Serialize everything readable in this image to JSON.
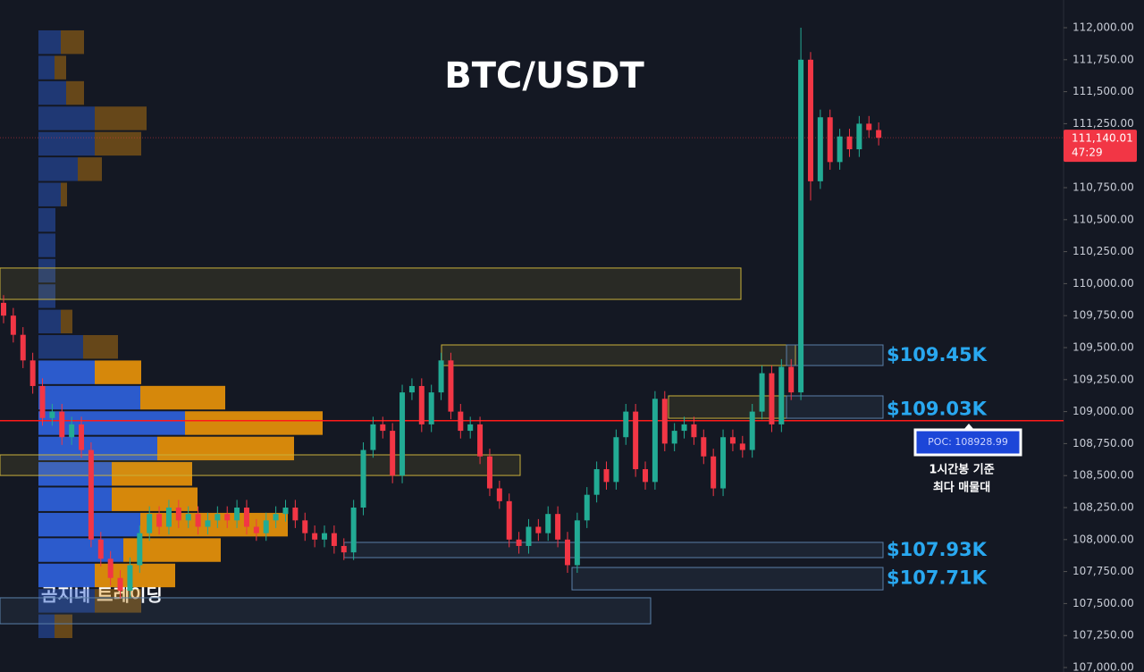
{
  "chart_data": {
    "type": "candlestick",
    "title": "BTC/USDT",
    "watermark": "곰지네 트레이딩",
    "categories": [
      null,
      null,
      null,
      null,
      null,
      null,
      null,
      null,
      null,
      null,
      null,
      null,
      null,
      null,
      null,
      null,
      null,
      null,
      null,
      null,
      null,
      null,
      null,
      null,
      null,
      null,
      null,
      null,
      null,
      null,
      null,
      null,
      null,
      null,
      null,
      null,
      null,
      null,
      null,
      null,
      null,
      null,
      null,
      null,
      null,
      null,
      null,
      null,
      null,
      null,
      null,
      null,
      null,
      null,
      null,
      null,
      null,
      null,
      null,
      null,
      null,
      null,
      null,
      null,
      null,
      null,
      null,
      null,
      null,
      null,
      null,
      null,
      null,
      null,
      null,
      null,
      null,
      null,
      null,
      null,
      null,
      null,
      null,
      null,
      null,
      null,
      null,
      null,
      null,
      null,
      null
    ],
    "open": [
      109850,
      109750,
      109600,
      109400,
      109200,
      108950,
      109000,
      108800,
      108900,
      108700,
      108000,
      107850,
      107700,
      107600,
      107800,
      108050,
      108200,
      108100,
      108250,
      108150,
      108200,
      108100,
      108150,
      108200,
      108150,
      108250,
      108100,
      108050,
      108150,
      108200,
      108250,
      108150,
      108050,
      108000,
      108050,
      107950,
      107900,
      108250,
      108700,
      108900,
      108850,
      108500,
      109150,
      109200,
      108900,
      109150,
      109400,
      109000,
      108850,
      108900,
      108650,
      108400,
      108300,
      108000,
      107950,
      108100,
      108050,
      108200,
      108000,
      107800,
      108150,
      108350,
      108550,
      108450,
      108800,
      109000,
      108550,
      108450,
      109100,
      108750,
      108850,
      108900,
      108800,
      108650,
      108400,
      108800,
      108750,
      108700,
      109000,
      109300,
      108900,
      109350,
      109150,
      111750,
      110800,
      111300,
      110950,
      111150,
      111050,
      111250,
      111200
    ],
    "high": [
      109910,
      109810,
      109660,
      109460,
      109260,
      109060,
      109060,
      108960,
      108960,
      108760,
      108060,
      107910,
      107760,
      107860,
      108110,
      108260,
      108260,
      108310,
      108310,
      108260,
      108260,
      108210,
      108260,
      108260,
      108310,
      108310,
      108160,
      108210,
      108260,
      108310,
      108310,
      108210,
      108110,
      108110,
      108110,
      108010,
      108310,
      108760,
      108960,
      108960,
      108910,
      109210,
      109260,
      109260,
      109210,
      109460,
      109460,
      109060,
      108960,
      108960,
      108710,
      108460,
      108360,
      108060,
      108160,
      108160,
      108260,
      108260,
      108060,
      108210,
      108410,
      108610,
      108610,
      108860,
      109060,
      109060,
      108610,
      109160,
      109160,
      108910,
      108960,
      108960,
      108860,
      108710,
      108860,
      108860,
      108810,
      109060,
      109360,
      109360,
      109410,
      109410,
      112000,
      111810,
      111360,
      111360,
      111210,
      111210,
      111310,
      111310,
      111260
    ],
    "low": [
      109690,
      109540,
      109340,
      109140,
      108890,
      108890,
      108740,
      108740,
      108640,
      107940,
      107790,
      107640,
      107540,
      107540,
      107740,
      107990,
      108040,
      108040,
      108090,
      108090,
      108040,
      108040,
      108090,
      108090,
      108090,
      108040,
      107990,
      107990,
      108090,
      108140,
      108090,
      107990,
      107940,
      107940,
      107890,
      107840,
      107840,
      108190,
      108640,
      108790,
      108440,
      108440,
      109090,
      108840,
      108840,
      109090,
      108940,
      108790,
      108790,
      108590,
      108340,
      108240,
      107940,
      107890,
      107890,
      107990,
      107990,
      107940,
      107740,
      107740,
      108090,
      108290,
      108390,
      108390,
      108740,
      108490,
      108390,
      108390,
      108690,
      108690,
      108790,
      108740,
      108590,
      108340,
      108340,
      108690,
      108640,
      108640,
      108940,
      108840,
      108840,
      109090,
      109090,
      110650,
      110740,
      110890,
      110890,
      110990,
      110990,
      111140,
      111080
    ],
    "close": [
      109750,
      109600,
      109400,
      109200,
      108950,
      109000,
      108800,
      108900,
      108700,
      108000,
      107850,
      107700,
      107600,
      107800,
      108050,
      108200,
      108100,
      108250,
      108150,
      108200,
      108100,
      108150,
      108200,
      108150,
      108250,
      108100,
      108050,
      108150,
      108200,
      108250,
      108150,
      108050,
      108000,
      108050,
      107950,
      107900,
      108250,
      108700,
      108900,
      108850,
      108500,
      109150,
      109200,
      108900,
      109150,
      109400,
      109000,
      108850,
      108900,
      108650,
      108400,
      108300,
      108000,
      107950,
      108100,
      108050,
      108200,
      108000,
      107800,
      108150,
      108350,
      108550,
      108450,
      108800,
      109000,
      108550,
      108450,
      109100,
      108750,
      108850,
      108900,
      108800,
      108650,
      108400,
      108800,
      108750,
      108700,
      109000,
      109300,
      108900,
      109350,
      109150,
      111750,
      110800,
      111300,
      110950,
      111150,
      111050,
      111250,
      111200,
      111140.01
    ],
    "up_color": "#22ab94",
    "down_color": "#f23645",
    "ylim": [
      107000,
      112000
    ],
    "yticks": [
      {
        "value": 107000,
        "label": "107,000.00"
      },
      {
        "value": 107250,
        "label": "107,250.00"
      },
      {
        "value": 107500,
        "label": "107,500.00"
      },
      {
        "value": 107750,
        "label": "107,750.00"
      },
      {
        "value": 108000,
        "label": "108,000.00"
      },
      {
        "value": 108250,
        "label": "108,250.00"
      },
      {
        "value": 108500,
        "label": "108,500.00"
      },
      {
        "value": 108750,
        "label": "108,750.00"
      },
      {
        "value": 109000,
        "label": "109,000.00"
      },
      {
        "value": 109250,
        "label": "109,250.00"
      },
      {
        "value": 109500,
        "label": "109,500.00"
      },
      {
        "value": 109750,
        "label": "109,750.00"
      },
      {
        "value": 110000,
        "label": "110,000.00"
      },
      {
        "value": 110250,
        "label": "110,250.00"
      },
      {
        "value": 110500,
        "label": "110,500.00"
      },
      {
        "value": 110750,
        "label": "110,750.00"
      },
      {
        "value": 111000,
        "label": "111,000.00"
      },
      {
        "value": 111250,
        "label": "111,250.00"
      },
      {
        "value": 111500,
        "label": "111,500.00"
      },
      {
        "value": 111750,
        "label": "111,750.00"
      },
      {
        "value": 112000,
        "label": "112,000.00"
      }
    ],
    "last_price": {
      "value": 111140.01,
      "label": "111,140.01"
    },
    "countdown": "47:29",
    "poc": {
      "value": 108928.99,
      "label": "POC: 108928.99"
    },
    "poc_note": [
      "1시간봉 기준",
      "최다 매물대"
    ],
    "levels": [
      {
        "value": 109450,
        "label": "$109.45K"
      },
      {
        "value": 109030,
        "label": "$109.03K"
      },
      {
        "value": 107930,
        "label": "$107.93K"
      },
      {
        "value": 107710,
        "label": "$107.71K"
      }
    ],
    "zones": [
      {
        "low": 109877,
        "high": 110122,
        "color": "#c9b03a"
      },
      {
        "low": 109360,
        "high": 109521,
        "color": "#c9b03a"
      },
      {
        "low": 109360,
        "high": 109521,
        "color": "#5a7fa8"
      },
      {
        "low": 108948,
        "high": 109123,
        "color": "#c9b03a"
      },
      {
        "low": 108948,
        "high": 109123,
        "color": "#5a7fa8"
      },
      {
        "low": 108501,
        "high": 108662,
        "color": "#c9b03a"
      },
      {
        "low": 107859,
        "high": 107978,
        "color": "#5a7fa8"
      },
      {
        "low": 107607,
        "high": 107782,
        "color": "#5a7fa8"
      },
      {
        "low": 107342,
        "high": 107545,
        "color": "#5a7fa8"
      }
    ],
    "volume_profile": {
      "buy": [
        25,
        18,
        31,
        63,
        63,
        44,
        25,
        19,
        19,
        19,
        19,
        25,
        50,
        63,
        114,
        164,
        133,
        82,
        82,
        114,
        95,
        63,
        63,
        18
      ],
      "sell": [
        26,
        13,
        20,
        58,
        52,
        27,
        7,
        0,
        0,
        0,
        0,
        13,
        39,
        52,
        95,
        154,
        153,
        90,
        96,
        165,
        109,
        90,
        52,
        20
      ],
      "buy_color": "#2d5fd6",
      "sell_color": "#e08e0b"
    }
  }
}
